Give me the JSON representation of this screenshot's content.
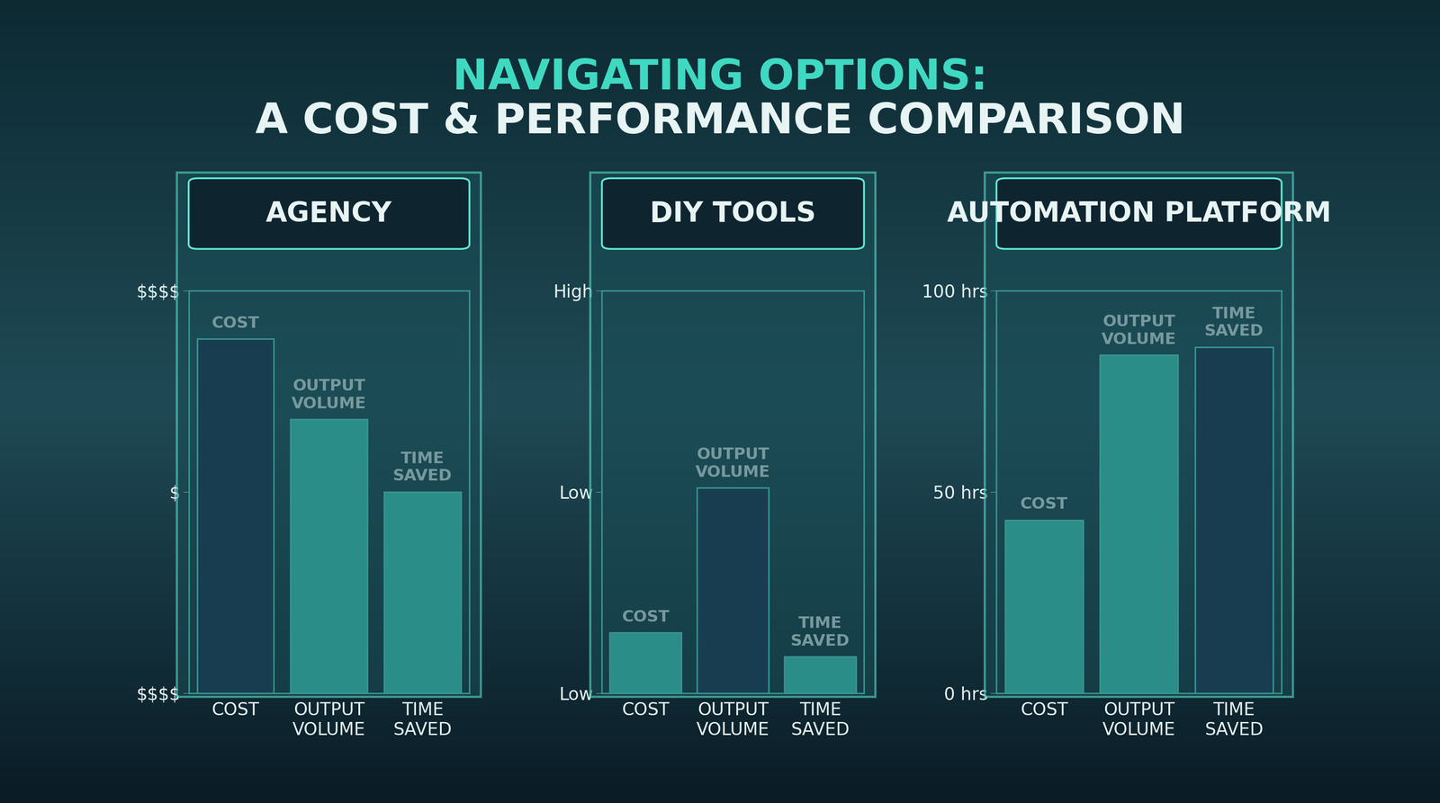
{
  "title": "NAVIGATING OPTIONS:",
  "subtitle": "A COST & PERFORMANCE COMPARISON",
  "chart_data": [
    {
      "type": "bar",
      "title": "AGENCY",
      "categories": [
        "COST",
        "OUTPUT VOLUME",
        "TIME SAVED"
      ],
      "values": [
        88,
        68,
        50
      ],
      "colors": [
        "#16284a",
        "#3fd9c2",
        "#3fd9c2"
      ],
      "ylim": [
        0,
        100
      ],
      "yticks": [
        {
          "value": 0,
          "label": "$$$$"
        },
        {
          "value": 50,
          "label": "$"
        },
        {
          "value": 100,
          "label": "$$$$"
        }
      ],
      "grid": false
    },
    {
      "type": "bar",
      "title": "DIY TOOLS",
      "categories": [
        "COST",
        "OUTPUT VOLUME",
        "TIME SAVED"
      ],
      "values": [
        15,
        51,
        9
      ],
      "colors": [
        "#3fd9c2",
        "#16284a",
        "#3fd9c2"
      ],
      "ylim": [
        0,
        100
      ],
      "yticks": [
        {
          "value": 0,
          "label": "Low"
        },
        {
          "value": 50,
          "label": "Low"
        },
        {
          "value": 100,
          "label": "High"
        }
      ],
      "grid": false
    },
    {
      "type": "bar",
      "title": "AUTOMATION PLATFORM",
      "categories": [
        "COST",
        "OUTPUT VOLUME",
        "TIME SAVED"
      ],
      "values": [
        43,
        84,
        86
      ],
      "colors": [
        "#3fd9c2",
        "#3fd9c2",
        "#16284a"
      ],
      "ylim": [
        0,
        100
      ],
      "yticks": [
        {
          "value": 0,
          "label": "0 hrs"
        },
        {
          "value": 50,
          "label": "50 hrs"
        },
        {
          "value": 100,
          "label": "100 hrs"
        }
      ],
      "grid": false
    }
  ]
}
